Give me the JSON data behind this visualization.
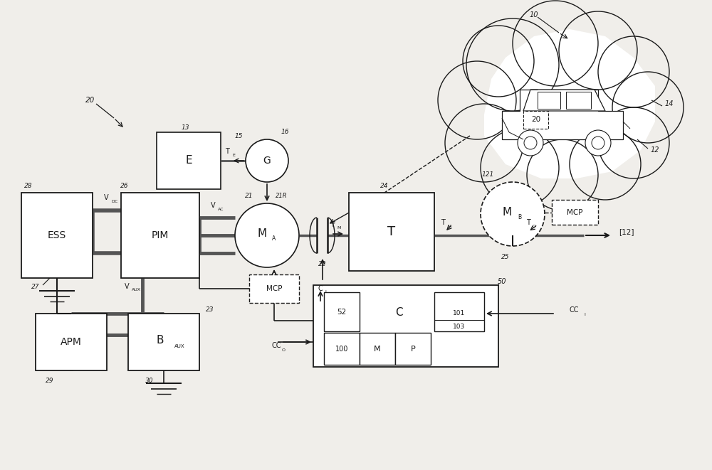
{
  "bg_color": "#f0eeea",
  "line_color": "#1a1a1a",
  "fig_width": 10.0,
  "fig_height": 6.61,
  "dpi": 100,
  "cloud_circles": [
    [
      72,
      57,
      6.5
    ],
    [
      78,
      60,
      6
    ],
    [
      84,
      59,
      5.5
    ],
    [
      89,
      56,
      5
    ],
    [
      91,
      51,
      5
    ],
    [
      89,
      46,
      5
    ],
    [
      85,
      43,
      5
    ],
    [
      79,
      41.5,
      5
    ],
    [
      73,
      42.5,
      5.5
    ],
    [
      68,
      46,
      5.5
    ],
    [
      67,
      52,
      5.5
    ],
    [
      70,
      57.5,
      5
    ]
  ]
}
